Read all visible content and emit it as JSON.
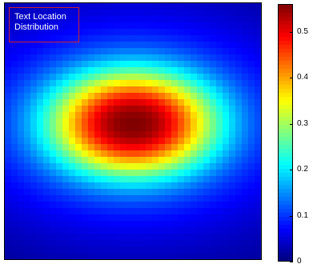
{
  "chart_data": {
    "type": "heatmap",
    "title": "Text Location Distribution",
    "colormap": "jet",
    "value_range": [
      0,
      0.56
    ],
    "colorbar_ticks": [
      "0",
      "0.1",
      "0.2",
      "0.3",
      "0.4",
      "0.5"
    ],
    "colorbar_tick_values": [
      0,
      0.1,
      0.2,
      0.3,
      0.4,
      0.5
    ],
    "grid_size": [
      40,
      40
    ],
    "distribution": {
      "center": [
        0.5,
        0.47
      ],
      "peak_value": 0.56,
      "spread_x": 0.3,
      "spread_y": 0.19,
      "outer_floor": 0.05
    },
    "legend": "colorbar right",
    "grid": false
  }
}
